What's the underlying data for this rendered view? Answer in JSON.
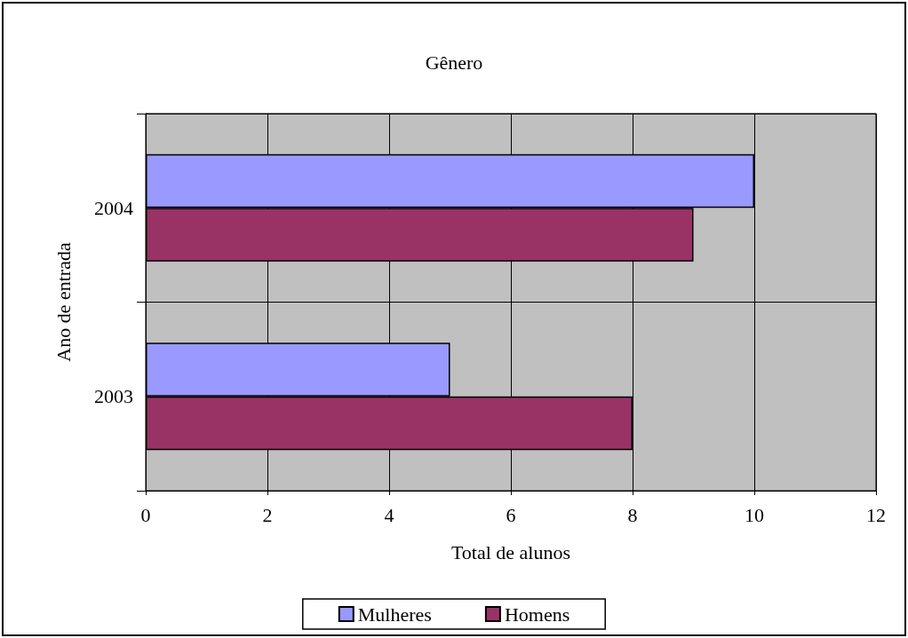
{
  "chart_data": {
    "type": "bar",
    "orientation": "horizontal",
    "title": "Gênero",
    "xlabel": "Total de alunos",
    "ylabel": "Ano de entrada",
    "categories": [
      "2004",
      "2003"
    ],
    "series": [
      {
        "name": "Mulheres",
        "color": "#9999ff",
        "values": [
          10,
          5
        ]
      },
      {
        "name": "Homens",
        "color": "#993366",
        "values": [
          9,
          8
        ]
      }
    ],
    "xlim": [
      0,
      12
    ],
    "xticks": [
      0,
      2,
      4,
      6,
      8,
      10,
      12
    ],
    "grid": true,
    "legend": "bottom"
  }
}
